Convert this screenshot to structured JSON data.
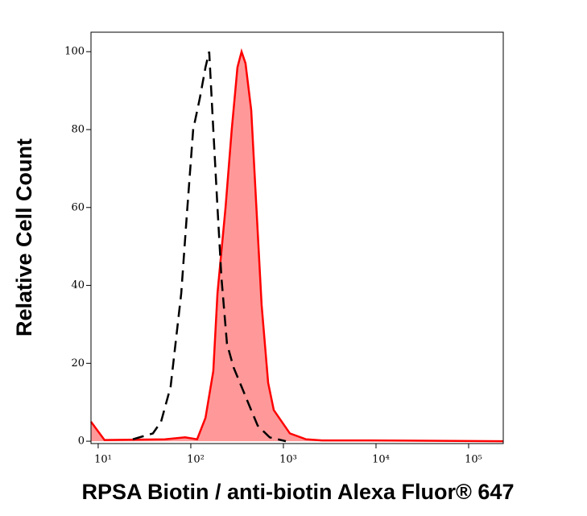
{
  "chart_data": {
    "type": "histogram-overlay",
    "x_label": "RPSA Biotin / anti-biotin Alexa Fluor® 647",
    "y_label": "Relative Cell Count",
    "x_log": true,
    "xlim": [
      8.36,
      236600
    ],
    "ylim": [
      -0.6,
      105
    ],
    "xticks": [
      {
        "value": 10,
        "label": "10¹"
      },
      {
        "value": 100,
        "label": "10²"
      },
      {
        "value": 1000,
        "label": "10³"
      },
      {
        "value": 10000,
        "label": "10⁴"
      },
      {
        "value": 100000,
        "label": "10⁵"
      }
    ],
    "yticks": [
      0,
      20,
      40,
      60,
      80,
      100
    ],
    "series": [
      {
        "color": "#ff0000",
        "fill": "#ff9999",
        "dashed": false,
        "x": [
          8.36,
          11.7,
          52.7,
          86.9,
          117,
          144,
          175,
          194,
          237,
          277,
          319,
          353,
          390,
          449,
          506,
          582,
          684,
          787,
          961,
          1175,
          1750,
          2612,
          8690,
          236600
        ],
        "values": [
          5,
          0.3,
          0.5,
          1,
          0.5,
          6,
          18,
          38,
          60,
          80,
          96,
          100,
          97,
          85,
          62,
          35,
          15,
          8,
          5,
          2,
          0.5,
          0.2,
          0.2,
          0
        ]
      },
      {
        "color": "#000000",
        "fill": null,
        "dashed": true,
        "x": [
          23.7,
          39,
          47.7,
          60.6,
          78.8,
          90.6,
          106,
          125,
          144,
          158,
          175,
          194,
          214,
          246,
          289,
          353,
          431,
          527,
          711,
          1062
        ],
        "values": [
          0.5,
          2,
          5,
          14,
          38,
          58,
          80,
          88,
          96,
          100,
          80,
          60,
          42,
          25,
          19,
          14,
          9,
          4,
          1,
          0
        ]
      }
    ]
  }
}
